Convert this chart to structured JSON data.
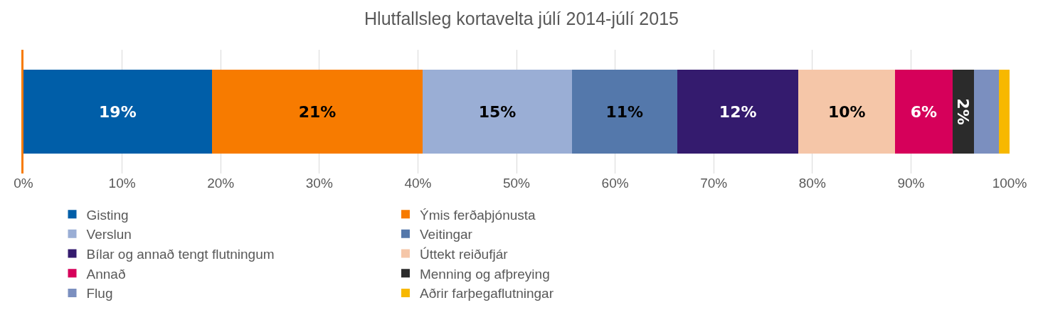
{
  "chart_data": {
    "type": "bar",
    "title": "Hlutfallsleg kortavelta júlí 2014-júlí 2015",
    "orientation": "horizontal",
    "stacked": true,
    "categories": [
      null
    ],
    "series": [
      {
        "name": "Gisting",
        "color": "#005ea8",
        "values": [
          19.1
        ],
        "value_labels": [
          "19%"
        ]
      },
      {
        "name": "Ýmis ferðaþjónusta",
        "color": "#f77b00",
        "values": [
          21.4
        ],
        "value_labels": [
          "21%"
        ]
      },
      {
        "name": "Verslun",
        "color": "#9aaed5",
        "values": [
          15.1
        ],
        "value_labels": [
          "15%"
        ]
      },
      {
        "name": "Veitingar",
        "color": "#5478ab",
        "values": [
          10.7
        ],
        "value_labels": [
          "11%"
        ]
      },
      {
        "name": "Bílar og annað tengt flutningum",
        "color": "#341b6e",
        "values": [
          12.3
        ],
        "value_labels": [
          "12%"
        ]
      },
      {
        "name": "Úttekt reiðufjár",
        "color": "#f5c6a8",
        "values": [
          9.8
        ],
        "value_labels": [
          "10%"
        ]
      },
      {
        "name": "Annað",
        "color": "#d6005a",
        "values": [
          5.8
        ],
        "value_labels": [
          "6%"
        ]
      },
      {
        "name": "Menning og afþreying",
        "color": "#2b2b2b",
        "values": [
          2.2
        ],
        "value_labels": [
          "2%"
        ]
      },
      {
        "name": "Flug",
        "color": "#7b8fbf",
        "values": [
          2.5
        ],
        "value_labels": [
          null
        ]
      },
      {
        "name": "Aðrir farþegaflutningar",
        "color": "#f7b800",
        "values": [
          1.1
        ],
        "value_labels": [
          null
        ]
      }
    ],
    "xlim": [
      0,
      100
    ],
    "xticks": [
      {
        "value": 0,
        "label": "0%"
      },
      {
        "value": 10,
        "label": "10%"
      },
      {
        "value": 20,
        "label": "20%"
      },
      {
        "value": 30,
        "label": "30%"
      },
      {
        "value": 40,
        "label": "40%"
      },
      {
        "value": 50,
        "label": "50%"
      },
      {
        "value": 60,
        "label": "60%"
      },
      {
        "value": 70,
        "label": "70%"
      },
      {
        "value": 80,
        "label": "80%"
      },
      {
        "value": 90,
        "label": "90%"
      },
      {
        "value": 100,
        "label": "100%"
      }
    ],
    "grid": "x",
    "legend": "bottom"
  }
}
